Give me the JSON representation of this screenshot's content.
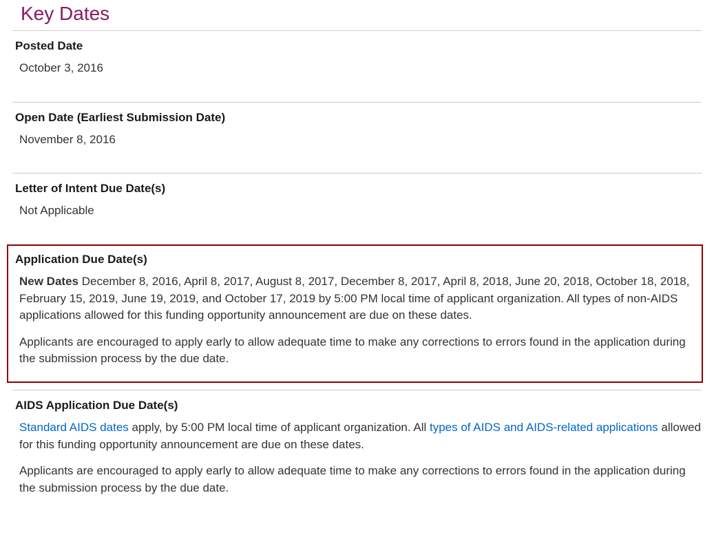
{
  "heading": "Key Dates",
  "colors": {
    "heading": "#8a1a5f",
    "divider": "#cccccc",
    "text": "#333333",
    "link": "#0066cc",
    "highlight_border": "#8b0000",
    "background": "#ffffff"
  },
  "typography": {
    "heading_fontsize": 28,
    "section_heading_fontsize": 17,
    "body_fontsize": 17,
    "font_family": "Arial"
  },
  "sections": {
    "posted": {
      "label": "Posted Date",
      "value": "October 3, 2016"
    },
    "open": {
      "label": "Open Date (Earliest Submission Date)",
      "value": "November 8, 2016"
    },
    "loi": {
      "label": "Letter of Intent Due Date(s)",
      "value": "Not Applicable"
    },
    "app_due": {
      "label": "Application Due Date(s)",
      "new_dates_label": "New Dates",
      "new_dates_text": " December 8, 2016, April 8, 2017, August 8, 2017, December 8, 2017, April 8, 2018, June 20, 2018, October 18, 2018, February 15, 2019, June 19, 2019, and October 17, 2019 by 5:00 PM local time of applicant organization. All types of non-AIDS applications allowed for this funding opportunity announcement are due on these dates.",
      "encourage_text": "Applicants are encouraged to apply early to allow adequate time to make any corrections to errors found in the application during the submission process by the due date."
    },
    "aids_due": {
      "label": "AIDS Application Due Date(s)",
      "link1_text": "Standard AIDS dates",
      "text_mid1": " apply, by 5:00 PM local time of applicant organization. All ",
      "link2_text": "types of AIDS and AIDS-related applications",
      "text_mid2": " allowed for this funding opportunity announcement are due on these dates.",
      "encourage_text": "Applicants are encouraged to apply early to allow adequate time to make any corrections to errors found in the application during the submission process by the due date."
    }
  }
}
